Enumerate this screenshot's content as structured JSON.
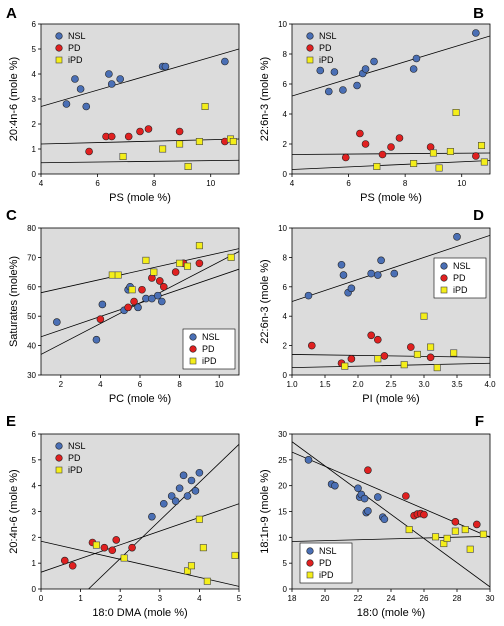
{
  "figure": {
    "legend_labels": [
      "NSL",
      "PD",
      "iPD"
    ],
    "series_colors": {
      "NSL": "#4a6fb5",
      "PD": "#e02020",
      "iPD": "#f4ee1a"
    }
  },
  "chart_data": [
    {
      "panel": "A",
      "type": "scatter",
      "xlabel": "PS (mole %)",
      "ylabel": "20:4n-6 (mole %)",
      "xlim": [
        4,
        11
      ],
      "ylim": [
        0,
        6
      ],
      "xticks": [
        4,
        6,
        8,
        10
      ],
      "yticks": [
        0,
        1,
        2,
        3,
        4,
        5,
        6
      ],
      "legend_placement": "top-left",
      "series": [
        {
          "name": "NSL",
          "points": [
            [
              4.9,
              2.8
            ],
            [
              5.2,
              3.8
            ],
            [
              5.4,
              3.4
            ],
            [
              5.6,
              2.7
            ],
            [
              6.4,
              4.0
            ],
            [
              6.5,
              3.6
            ],
            [
              6.8,
              3.8
            ],
            [
              8.3,
              4.3
            ],
            [
              8.4,
              4.3
            ],
            [
              10.5,
              4.5
            ]
          ]
        },
        {
          "name": "PD",
          "points": [
            [
              5.7,
              0.9
            ],
            [
              6.3,
              1.5
            ],
            [
              6.5,
              1.5
            ],
            [
              7.1,
              1.5
            ],
            [
              7.5,
              1.7
            ],
            [
              7.8,
              1.8
            ],
            [
              8.9,
              1.7
            ],
            [
              10.5,
              1.3
            ]
          ]
        },
        {
          "name": "iPD",
          "points": [
            [
              6.9,
              0.7
            ],
            [
              8.3,
              1.0
            ],
            [
              8.9,
              1.2
            ],
            [
              9.2,
              0.3
            ],
            [
              9.6,
              1.3
            ],
            [
              9.8,
              2.7
            ],
            [
              10.7,
              1.4
            ],
            [
              10.8,
              1.3
            ]
          ]
        }
      ],
      "fit_lines": [
        {
          "x": [
            4,
            11
          ],
          "y": [
            2.7,
            5.0
          ]
        },
        {
          "x": [
            4,
            11
          ],
          "y": [
            1.2,
            1.4
          ]
        },
        {
          "x": [
            4,
            11
          ],
          "y": [
            0.45,
            0.55
          ]
        }
      ]
    },
    {
      "panel": "B",
      "type": "scatter",
      "xlabel": "PS (mole %)",
      "ylabel": "22:6n-3 (mole %)",
      "xlim": [
        4,
        11
      ],
      "ylim": [
        0,
        10
      ],
      "xticks": [
        4,
        6,
        8,
        10
      ],
      "yticks": [
        0,
        2,
        4,
        6,
        8,
        10
      ],
      "legend_placement": "top-left",
      "series": [
        {
          "name": "NSL",
          "points": [
            [
              5.0,
              6.9
            ],
            [
              5.3,
              5.5
            ],
            [
              5.5,
              6.8
            ],
            [
              5.8,
              5.6
            ],
            [
              6.3,
              5.9
            ],
            [
              6.5,
              6.7
            ],
            [
              6.6,
              7.0
            ],
            [
              6.9,
              7.5
            ],
            [
              8.3,
              7.0
            ],
            [
              8.4,
              7.7
            ],
            [
              10.5,
              9.4
            ]
          ]
        },
        {
          "name": "PD",
          "points": [
            [
              5.9,
              1.1
            ],
            [
              6.4,
              2.7
            ],
            [
              6.6,
              2.0
            ],
            [
              7.2,
              1.3
            ],
            [
              7.5,
              1.8
            ],
            [
              7.8,
              2.4
            ],
            [
              8.9,
              1.8
            ],
            [
              10.5,
              1.2
            ]
          ]
        },
        {
          "name": "iPD",
          "points": [
            [
              7.0,
              0.5
            ],
            [
              8.3,
              0.7
            ],
            [
              9.0,
              1.4
            ],
            [
              9.2,
              0.4
            ],
            [
              9.6,
              1.5
            ],
            [
              9.8,
              4.1
            ],
            [
              10.7,
              1.9
            ],
            [
              10.8,
              0.8
            ]
          ]
        }
      ],
      "fit_lines": [
        {
          "x": [
            4,
            11
          ],
          "y": [
            5.2,
            9.2
          ]
        },
        {
          "x": [
            4,
            11
          ],
          "y": [
            1.3,
            1.4
          ]
        },
        {
          "x": [
            4,
            11
          ],
          "y": [
            0.3,
            0.9
          ]
        }
      ]
    },
    {
      "panel": "C",
      "type": "scatter",
      "xlabel": "PC (mole %)",
      "ylabel": "Saturates (mole%)",
      "xlim": [
        1,
        11
      ],
      "ylim": [
        30,
        80
      ],
      "xticks": [
        2,
        4,
        6,
        8,
        10
      ],
      "yticks": [
        30,
        40,
        50,
        60,
        70,
        80
      ],
      "legend_placement": "bottom-right",
      "series": [
        {
          "name": "NSL",
          "points": [
            [
              1.8,
              48
            ],
            [
              3.8,
              42
            ],
            [
              4.1,
              54
            ],
            [
              5.2,
              52
            ],
            [
              5.4,
              59
            ],
            [
              5.5,
              60
            ],
            [
              5.9,
              53
            ],
            [
              6.3,
              56
            ],
            [
              6.6,
              56
            ],
            [
              6.9,
              57
            ],
            [
              7.1,
              55
            ]
          ]
        },
        {
          "name": "PD",
          "points": [
            [
              4.0,
              49
            ],
            [
              5.4,
              53
            ],
            [
              5.7,
              55
            ],
            [
              6.1,
              59
            ],
            [
              6.6,
              63
            ],
            [
              7.0,
              62
            ],
            [
              7.2,
              60
            ],
            [
              7.8,
              65
            ],
            [
              8.2,
              68
            ],
            [
              9.0,
              68
            ]
          ]
        },
        {
          "name": "iPD",
          "points": [
            [
              4.6,
              64
            ],
            [
              4.9,
              64
            ],
            [
              5.6,
              59
            ],
            [
              6.3,
              69
            ],
            [
              6.7,
              65
            ],
            [
              8.0,
              68
            ],
            [
              8.4,
              67
            ],
            [
              9.0,
              74
            ],
            [
              10.6,
              70
            ]
          ]
        }
      ],
      "fit_lines": [
        {
          "x": [
            1,
            11
          ],
          "y": [
            37,
            72
          ]
        },
        {
          "x": [
            1,
            11
          ],
          "y": [
            43,
            66
          ]
        },
        {
          "x": [
            1,
            11
          ],
          "y": [
            58,
            73
          ]
        }
      ]
    },
    {
      "panel": "D",
      "type": "scatter",
      "xlabel": "PI (mole %)",
      "ylabel": "22:6n-3 (mole %)",
      "xlim": [
        1.0,
        4.0
      ],
      "ylim": [
        0,
        10
      ],
      "xticks": [
        1.0,
        1.5,
        2.0,
        2.5,
        3.0,
        3.5,
        4.0
      ],
      "yticks": [
        0,
        2,
        4,
        6,
        8,
        10
      ],
      "legend_placement": "top-right",
      "series": [
        {
          "name": "NSL",
          "points": [
            [
              1.25,
              5.4
            ],
            [
              1.75,
              7.5
            ],
            [
              1.78,
              6.8
            ],
            [
              1.85,
              5.6
            ],
            [
              1.9,
              5.9
            ],
            [
              2.2,
              6.9
            ],
            [
              2.3,
              6.8
            ],
            [
              2.35,
              7.8
            ],
            [
              2.55,
              6.9
            ],
            [
              3.5,
              9.4
            ]
          ]
        },
        {
          "name": "PD",
          "points": [
            [
              1.3,
              2.0
            ],
            [
              1.75,
              0.8
            ],
            [
              1.9,
              1.1
            ],
            [
              2.2,
              2.7
            ],
            [
              2.3,
              2.4
            ],
            [
              2.4,
              1.3
            ],
            [
              2.8,
              1.9
            ],
            [
              3.1,
              1.2
            ]
          ]
        },
        {
          "name": "iPD",
          "points": [
            [
              1.8,
              0.6
            ],
            [
              2.3,
              1.1
            ],
            [
              2.7,
              0.7
            ],
            [
              2.9,
              1.4
            ],
            [
              3.0,
              4.0
            ],
            [
              3.1,
              1.9
            ],
            [
              3.2,
              0.5
            ],
            [
              3.45,
              1.5
            ]
          ]
        }
      ],
      "fit_lines": [
        {
          "x": [
            1.0,
            4.0
          ],
          "y": [
            5.0,
            9.5
          ]
        },
        {
          "x": [
            1.0,
            4.0
          ],
          "y": [
            1.4,
            1.2
          ]
        },
        {
          "x": [
            1.0,
            4.0
          ],
          "y": [
            0.5,
            0.8
          ]
        }
      ]
    },
    {
      "panel": "E",
      "type": "scatter",
      "xlabel": "18:0 DMA (mole %)",
      "ylabel": "20:4n-6 (mole %)",
      "xlim": [
        0,
        5
      ],
      "ylim": [
        0,
        6
      ],
      "xticks": [
        0,
        1,
        2,
        3,
        4,
        5
      ],
      "yticks": [
        0,
        1,
        2,
        3,
        4,
        5,
        6
      ],
      "legend_placement": "top-left",
      "series": [
        {
          "name": "NSL",
          "points": [
            [
              2.8,
              2.8
            ],
            [
              3.1,
              3.3
            ],
            [
              3.3,
              3.6
            ],
            [
              3.4,
              3.4
            ],
            [
              3.5,
              3.9
            ],
            [
              3.6,
              4.4
            ],
            [
              3.7,
              3.6
            ],
            [
              3.8,
              4.2
            ],
            [
              3.9,
              3.8
            ],
            [
              4.0,
              4.5
            ]
          ]
        },
        {
          "name": "PD",
          "points": [
            [
              0.6,
              1.1
            ],
            [
              0.8,
              0.9
            ],
            [
              1.3,
              1.8
            ],
            [
              1.6,
              1.6
            ],
            [
              1.8,
              1.5
            ],
            [
              1.9,
              1.9
            ],
            [
              2.3,
              1.6
            ]
          ]
        },
        {
          "name": "iPD",
          "points": [
            [
              1.4,
              1.7
            ],
            [
              2.1,
              1.2
            ],
            [
              3.7,
              0.7
            ],
            [
              3.8,
              0.9
            ],
            [
              4.0,
              2.7
            ],
            [
              4.1,
              1.6
            ],
            [
              4.2,
              0.3
            ],
            [
              4.9,
              1.3
            ]
          ]
        }
      ],
      "fit_lines": [
        {
          "x": [
            1.2,
            5
          ],
          "y": [
            0,
            5.6
          ]
        },
        {
          "x": [
            0,
            5
          ],
          "y": [
            0.65,
            3.3
          ]
        },
        {
          "x": [
            0,
            5
          ],
          "y": [
            1.85,
            0.1
          ]
        }
      ]
    },
    {
      "panel": "F",
      "type": "scatter",
      "xlabel": "18:0 (mole %)",
      "ylabel": "18:1n-9 (mole %)",
      "xlim": [
        18,
        30
      ],
      "ylim": [
        0,
        30
      ],
      "xticks": [
        18,
        20,
        22,
        24,
        26,
        28,
        30
      ],
      "yticks": [
        0,
        5,
        10,
        15,
        20,
        25,
        30
      ],
      "legend_placement": "bottom-left",
      "series": [
        {
          "name": "NSL",
          "points": [
            [
              19.0,
              25
            ],
            [
              20.4,
              20.3
            ],
            [
              20.6,
              20
            ],
            [
              22.0,
              19.5
            ],
            [
              22.1,
              17.8
            ],
            [
              22.2,
              18.3
            ],
            [
              22.4,
              17.5
            ],
            [
              22.5,
              14.8
            ],
            [
              22.6,
              15.1
            ],
            [
              23.2,
              17.8
            ],
            [
              23.5,
              13.9
            ],
            [
              23.6,
              13.5
            ]
          ]
        },
        {
          "name": "PD",
          "points": [
            [
              22.6,
              23
            ],
            [
              24.9,
              18
            ],
            [
              25.4,
              14.2
            ],
            [
              25.6,
              14.5
            ],
            [
              25.8,
              14.6
            ],
            [
              26.0,
              14.4
            ],
            [
              27.9,
              13
            ],
            [
              29.2,
              12.5
            ]
          ]
        },
        {
          "name": "iPD",
          "points": [
            [
              25.1,
              11.5
            ],
            [
              26.7,
              10.1
            ],
            [
              27.2,
              8.8
            ],
            [
              27.4,
              9.8
            ],
            [
              27.9,
              11.2
            ],
            [
              28.5,
              11.5
            ],
            [
              28.8,
              7.7
            ],
            [
              29.6,
              10.6
            ]
          ]
        }
      ],
      "fit_lines": [
        {
          "x": [
            18,
            30
          ],
          "y": [
            26.5,
            10.0
          ]
        },
        {
          "x": [
            18,
            30
          ],
          "y": [
            28.5,
            0.4
          ]
        },
        {
          "x": [
            18,
            30
          ],
          "y": [
            9.2,
            10.2
          ]
        }
      ]
    }
  ]
}
